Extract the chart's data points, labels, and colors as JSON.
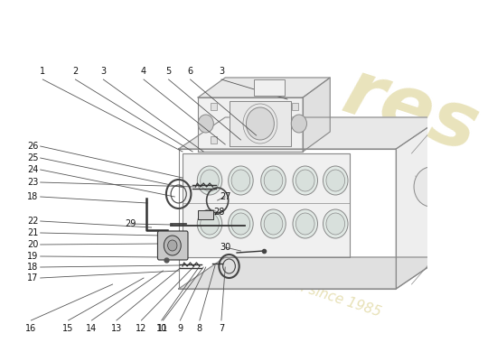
{
  "bg_color": "#ffffff",
  "watermark_text1": "res",
  "watermark_text2": "a passion since 1985",
  "watermark_color": "#d4c87a",
  "engine_line_color": "#888888",
  "label_fontsize": 7.0,
  "label_color": "#111111",
  "leader_color": "#555555"
}
